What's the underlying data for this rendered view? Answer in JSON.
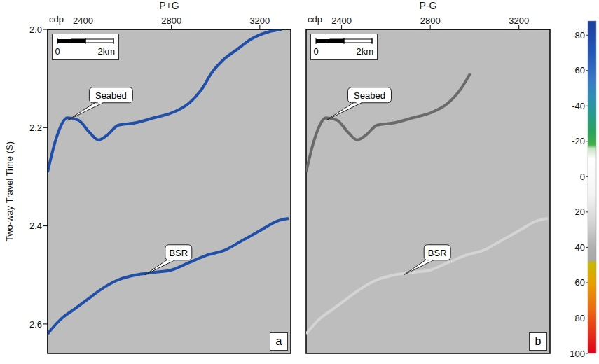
{
  "chart_data": [
    {
      "type": "line",
      "label": "a",
      "title": "P+G",
      "x_label": "cdp",
      "y_label": "Two-way Travel Time (S)",
      "xlim": [
        2240,
        3340
      ],
      "xticks": [
        2400,
        2800,
        3200
      ],
      "ylim": [
        2,
        2.66
      ],
      "yticks": [
        {
          "value": 2,
          "label": "2.0"
        },
        2.2,
        2.4,
        2.6
      ],
      "grid": false,
      "scale_bar": {
        "labels": [
          "0",
          "2km"
        ]
      },
      "series": [
        {
          "name": "Seabed",
          "color": "#1f4fa8",
          "x": [
            2240,
            2280,
            2330,
            2380,
            2430,
            2470,
            2510,
            2560,
            2640,
            2720,
            2800,
            2880,
            2940,
            2980,
            3040,
            3100,
            3160,
            3240,
            3300
          ],
          "values": [
            2.29,
            2.22,
            2.18,
            2.185,
            2.21,
            2.225,
            2.215,
            2.195,
            2.19,
            2.18,
            2.17,
            2.15,
            2.12,
            2.09,
            2.06,
            2.04,
            2.02,
            2.005,
            2
          ]
        },
        {
          "name": "BSR",
          "color": "#1f4fa8",
          "x": [
            2240,
            2300,
            2360,
            2420,
            2480,
            2560,
            2640,
            2720,
            2800,
            2880,
            2960,
            3040,
            3120,
            3200,
            3280,
            3330
          ],
          "values": [
            2.62,
            2.59,
            2.57,
            2.55,
            2.53,
            2.51,
            2.5,
            2.495,
            2.49,
            2.475,
            2.46,
            2.45,
            2.43,
            2.41,
            2.39,
            2.385
          ]
        }
      ],
      "annotations": [
        {
          "text": "Seabed",
          "x": 2330,
          "y": 2.185
        },
        {
          "text": "BSR",
          "x": 2680,
          "y": 2.5
        }
      ]
    },
    {
      "type": "line",
      "label": "b",
      "title": "P-G",
      "x_label": "cdp",
      "xlim": [
        2240,
        3340
      ],
      "xticks": [
        2400,
        2800,
        3200
      ],
      "ylim": [
        2,
        2.66
      ],
      "tick_labels": "x",
      "grid": false,
      "scale_bar": {
        "labels": [
          "0",
          "2km"
        ]
      },
      "series": [
        {
          "name": "Seabed",
          "color": "#6a6a6a",
          "x": [
            2240,
            2280,
            2330,
            2380,
            2430,
            2470,
            2510,
            2560,
            2640,
            2720,
            2800,
            2880,
            2940,
            2980
          ],
          "values": [
            2.29,
            2.22,
            2.18,
            2.185,
            2.21,
            2.225,
            2.215,
            2.195,
            2.19,
            2.18,
            2.17,
            2.15,
            2.12,
            2.09
          ]
        },
        {
          "name": "BSR",
          "color": "#d4d4d4",
          "x": [
            2240,
            2300,
            2360,
            2420,
            2480,
            2560,
            2640,
            2720,
            2800,
            2880,
            2960,
            3040,
            3120,
            3200,
            3280,
            3330
          ],
          "values": [
            2.62,
            2.59,
            2.57,
            2.55,
            2.53,
            2.51,
            2.5,
            2.495,
            2.49,
            2.475,
            2.46,
            2.45,
            2.43,
            2.41,
            2.39,
            2.385
          ]
        }
      ],
      "annotations": [
        {
          "text": "Seabed",
          "x": 2330,
          "y": 2.185
        },
        {
          "text": "BSR",
          "x": 2680,
          "y": 2.5
        }
      ]
    }
  ],
  "colorbar": {
    "range": [
      -88,
      100
    ],
    "ticks": [
      -80,
      -60,
      -40,
      -20,
      0,
      20,
      40,
      60,
      80,
      100
    ],
    "stops": [
      {
        "value": -88,
        "color": "#1c3f9e"
      },
      {
        "value": -70,
        "color": "#2457b8"
      },
      {
        "value": -55,
        "color": "#3a77c8"
      },
      {
        "value": -45,
        "color": "#2f8fb5"
      },
      {
        "value": -35,
        "color": "#279b8c"
      },
      {
        "value": -25,
        "color": "#2aa35a"
      },
      {
        "value": -18,
        "color": "#45b04a"
      },
      {
        "value": -16,
        "color": "#c9e3c2"
      },
      {
        "value": -10,
        "color": "#ffffff"
      },
      {
        "value": 10,
        "color": "#f4f4f4"
      },
      {
        "value": 25,
        "color": "#d6d6d6"
      },
      {
        "value": 40,
        "color": "#b0b0b0"
      },
      {
        "value": 47,
        "color": "#a8a8a8"
      },
      {
        "value": 49,
        "color": "#c9b800"
      },
      {
        "value": 60,
        "color": "#e6a100"
      },
      {
        "value": 75,
        "color": "#ec6a12"
      },
      {
        "value": 100,
        "color": "#e0001a"
      }
    ]
  }
}
